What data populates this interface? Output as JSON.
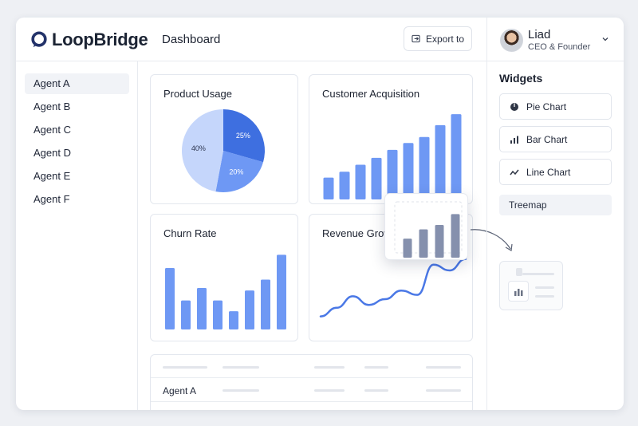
{
  "app": {
    "name": "LoopBridge",
    "page_title": "Dashboard"
  },
  "toolbar": {
    "export_label": "Export to"
  },
  "sidebar": {
    "items": [
      {
        "label": "Agent A",
        "active": true
      },
      {
        "label": "Agent B",
        "active": false
      },
      {
        "label": "Agent C",
        "active": false
      },
      {
        "label": "Agent D",
        "active": false
      },
      {
        "label": "Agent E",
        "active": false
      },
      {
        "label": "Agent F",
        "active": false
      }
    ]
  },
  "user": {
    "name": "Liad",
    "role": "CEO & Founder"
  },
  "widgets": {
    "title": "Widgets",
    "items": [
      {
        "label": "Pie Chart",
        "icon": "pie-chart-icon"
      },
      {
        "label": "Bar Chart",
        "icon": "bar-chart-icon"
      },
      {
        "label": "Line Chart",
        "icon": "line-chart-icon"
      },
      {
        "label": "Treemap",
        "icon": ""
      }
    ]
  },
  "cards": {
    "product_usage": {
      "title": "Product Usage"
    },
    "customer_acquisition": {
      "title": "Customer Acquisition"
    },
    "churn_rate": {
      "title": "Churn Rate"
    },
    "revenue_growth": {
      "title": "Revenue Grow"
    }
  },
  "table": {
    "first_row": "Agent A"
  },
  "colors": {
    "accent": "#4a78e6",
    "bar": "#6e98f4",
    "pie_dark": "#3e6fe0",
    "pie_mid": "#6e98f4",
    "pie_light": "#c5d6fb",
    "chip_bar": "#8590ad"
  },
  "chart_data": [
    {
      "type": "pie",
      "title": "Product Usage",
      "labels": [
        "25%",
        "20%",
        "40%"
      ],
      "values": [
        25,
        20,
        40
      ]
    },
    {
      "type": "bar",
      "title": "Customer Acquisition",
      "values": [
        22,
        28,
        35,
        42,
        50,
        57,
        63,
        75,
        86
      ]
    },
    {
      "type": "bar",
      "title": "Churn Rate",
      "values": [
        74,
        35,
        50,
        35,
        22,
        47,
        60,
        90
      ]
    },
    {
      "type": "line",
      "title": "Revenue Grow",
      "values": [
        8,
        14,
        22,
        16,
        20,
        26,
        23,
        44,
        40,
        48
      ]
    },
    {
      "type": "bar",
      "title": "",
      "values": [
        35,
        52,
        60,
        80
      ]
    }
  ]
}
